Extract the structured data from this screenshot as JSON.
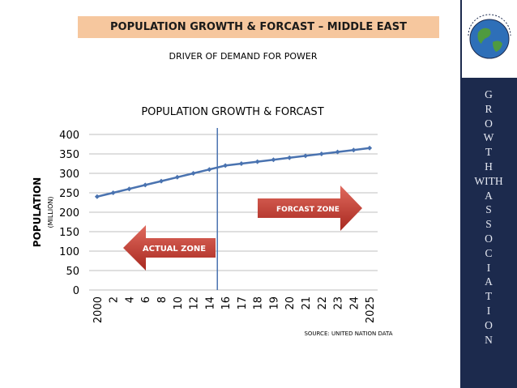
{
  "banner": {
    "title": "POPULATION GROWTH & FORCAST – MIDDLE EAST"
  },
  "subtitle": "DRIVER OF DEMAND FOR POWER",
  "chart_data": {
    "type": "line",
    "title": "POPULATION GROWTH & FORCAST",
    "ylabel": "POPULATION",
    "ylabel_unit": "(MILLION)",
    "xlabel": "",
    "categories": [
      "2000",
      "2",
      "4",
      "6",
      "8",
      "10",
      "12",
      "14",
      "16",
      "17",
      "18",
      "19",
      "20",
      "21",
      "22",
      "23",
      "24",
      "2025"
    ],
    "series": [
      {
        "values": [
          240,
          250,
          260,
          270,
          280,
          290,
          300,
          310,
          320,
          325,
          330,
          335,
          340,
          345,
          350,
          355,
          360,
          365
        ]
      }
    ],
    "ylim": [
      0,
      400
    ],
    "yticks": [
      0,
      50,
      100,
      150,
      200,
      250,
      300,
      350,
      400
    ],
    "grid": true,
    "divider_after_category": "16",
    "annotations": {
      "actual": "ACTUAL ZONE",
      "forecast": "FORCAST ZONE"
    },
    "source": "SOURCE: UNITED NATION DATA",
    "colors": {
      "line": "#4a73b0",
      "arrow": "#c0392b",
      "divider": "#4a73b0"
    }
  },
  "side": {
    "letters": [
      "G",
      "R",
      "O",
      "W",
      "T",
      "H",
      "WITH",
      "A",
      "S",
      "S",
      "O",
      "C",
      "I",
      "A",
      "T",
      "I",
      "O",
      "N"
    ],
    "logo_icon": "globe-icon",
    "logo_text": "GROWTH WITH INNOVATIONS"
  }
}
